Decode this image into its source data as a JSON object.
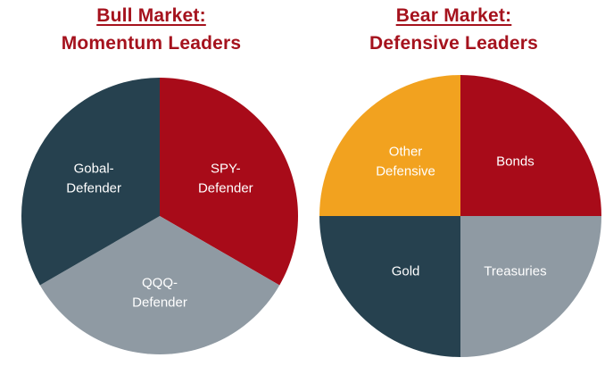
{
  "colors": {
    "title": "#a5121d",
    "navy": "#26414f",
    "red": "#a80b19",
    "gray": "#8f9aa3",
    "gold": "#f2a21f",
    "label": "#ffffff"
  },
  "chart_data": [
    {
      "type": "pie",
      "title": "Bull Market:",
      "subtitle": "Momentum Leaders",
      "slices": [
        {
          "label_lines": [
            "SPY-",
            "Defender"
          ],
          "value": 33.33,
          "color": "#a80b19"
        },
        {
          "label_lines": [
            "QQQ-",
            "Defender"
          ],
          "value": 33.33,
          "color": "#8f9aa3"
        },
        {
          "label_lines": [
            "Gobal-",
            "Defender"
          ],
          "value": 33.34,
          "color": "#26414f"
        }
      ]
    },
    {
      "type": "pie",
      "title": "Bear Market:",
      "subtitle": "Defensive Leaders",
      "slices": [
        {
          "label_lines": [
            "Bonds"
          ],
          "value": 25,
          "color": "#a80b19"
        },
        {
          "label_lines": [
            "Treasuries"
          ],
          "value": 25,
          "color": "#8f9aa3"
        },
        {
          "label_lines": [
            "Gold"
          ],
          "value": 25,
          "color": "#26414f"
        },
        {
          "label_lines": [
            "Other",
            "Defensive"
          ],
          "value": 25,
          "color": "#f2a21f"
        }
      ]
    }
  ]
}
